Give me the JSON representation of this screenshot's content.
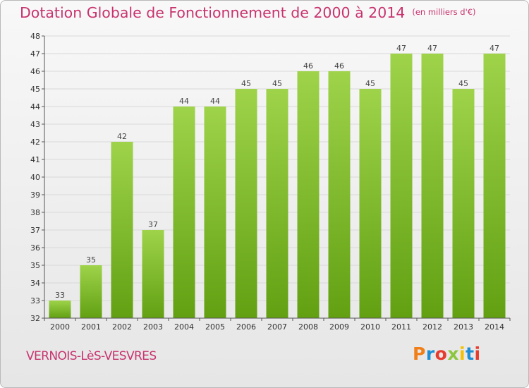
{
  "title": "Dotation Globale de Fonctionnement de 2000 à 2014",
  "unit": "(en milliers d'€)",
  "commune": "VERNOIS-LèS-VESVRES",
  "logo": {
    "text": "Proxiti",
    "colors": [
      "#f07f1a",
      "#1e8ed4",
      "#e63b2e",
      "#8cc63f",
      "#f5c000",
      "#1e8ed4",
      "#e63b2e"
    ]
  },
  "colors": {
    "bar_light": "#9ed34a",
    "bar_dark": "#62a012",
    "title": "#c8336e",
    "grid": "#d9d9d9"
  },
  "chart_data": {
    "type": "bar",
    "categories": [
      "2000",
      "2001",
      "2002",
      "2003",
      "2004",
      "2005",
      "2006",
      "2007",
      "2008",
      "2009",
      "2010",
      "2011",
      "2012",
      "2013",
      "2014"
    ],
    "values": [
      33,
      35,
      42,
      37,
      44,
      44,
      45,
      45,
      46,
      46,
      45,
      47,
      47,
      45,
      47
    ],
    "ylim": [
      32,
      48
    ],
    "yticks": [
      32,
      33,
      34,
      35,
      36,
      37,
      38,
      39,
      40,
      41,
      42,
      43,
      44,
      45,
      46,
      47,
      48
    ],
    "grid": true
  }
}
